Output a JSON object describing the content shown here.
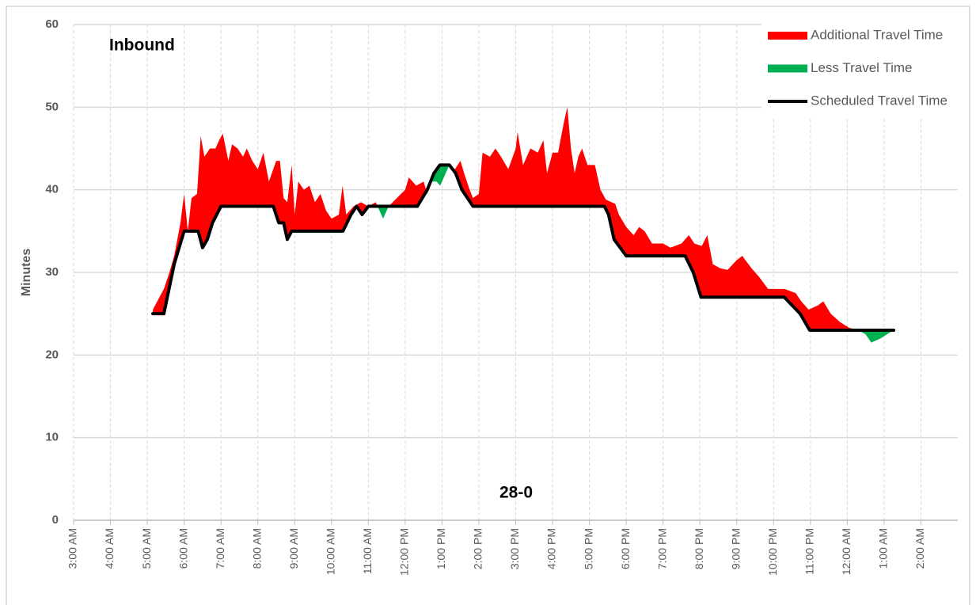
{
  "chart_data": {
    "type": "difference-area",
    "annotations": [
      "Inbound",
      "28-0"
    ],
    "y_label": "Minutes",
    "xlim": [
      3,
      27
    ],
    "ylim": [
      0,
      60
    ],
    "yticks": [
      0,
      10,
      20,
      30,
      40,
      50,
      60
    ],
    "xticks": [
      {
        "value": 3,
        "label": "3:00 AM"
      },
      {
        "value": 4,
        "label": "4:00 AM"
      },
      {
        "value": 5,
        "label": "5:00 AM"
      },
      {
        "value": 6,
        "label": "6:00 AM"
      },
      {
        "value": 7,
        "label": "7:00 AM"
      },
      {
        "value": 8,
        "label": "8:00 AM"
      },
      {
        "value": 9,
        "label": "9:00 AM"
      },
      {
        "value": 10,
        "label": "10:00 AM"
      },
      {
        "value": 11,
        "label": "11:00 AM"
      },
      {
        "value": 12,
        "label": "12:00 PM"
      },
      {
        "value": 13,
        "label": "1:00 PM"
      },
      {
        "value": 14,
        "label": "2:00 PM"
      },
      {
        "value": 15,
        "label": "3:00 PM"
      },
      {
        "value": 16,
        "label": "4:00 PM"
      },
      {
        "value": 17,
        "label": "5:00 PM"
      },
      {
        "value": 18,
        "label": "6:00 PM"
      },
      {
        "value": 19,
        "label": "7:00 PM"
      },
      {
        "value": 20,
        "label": "8:00 PM"
      },
      {
        "value": 21,
        "label": "9:00 PM"
      },
      {
        "value": 22,
        "label": "10:00 PM"
      },
      {
        "value": 23,
        "label": "11:00 PM"
      },
      {
        "value": 24,
        "label": "12:00 AM"
      },
      {
        "value": 25,
        "label": "1:00 AM"
      },
      {
        "value": 26,
        "label": "2:00 AM"
      }
    ],
    "grid": true,
    "legend": "top-right",
    "fills": [
      {
        "name": "Additional Travel Time",
        "color": "#ff0000",
        "where": "above"
      },
      {
        "name": "Less Travel Time",
        "color": "#00b050",
        "where": "below"
      }
    ],
    "series": [
      {
        "role": "observed",
        "x": [
          5.15,
          5.45,
          5.6,
          5.73,
          5.9,
          6.0,
          6.1,
          6.2,
          6.35,
          6.45,
          6.55,
          6.7,
          6.85,
          6.95,
          7.05,
          7.2,
          7.3,
          7.45,
          7.6,
          7.7,
          7.85,
          8.0,
          8.15,
          8.3,
          8.5,
          8.6,
          8.7,
          8.8,
          8.92,
          9.0,
          9.1,
          9.25,
          9.4,
          9.55,
          9.7,
          9.85,
          10.0,
          10.2,
          10.3,
          10.4,
          10.6,
          10.8,
          11.0,
          11.2,
          11.4,
          11.55,
          12.0,
          12.1,
          12.3,
          12.5,
          12.6,
          12.7,
          12.85,
          12.95,
          13.1,
          13.2,
          13.35,
          13.5,
          13.6,
          13.75,
          13.84,
          14.0,
          14.1,
          14.3,
          14.45,
          14.6,
          14.8,
          15.0,
          15.05,
          15.2,
          15.4,
          15.6,
          15.75,
          15.85,
          16.0,
          16.15,
          16.3,
          16.4,
          16.5,
          16.6,
          16.7,
          16.8,
          16.95,
          17.15,
          17.3,
          17.45,
          17.7,
          17.8,
          18.0,
          18.2,
          18.35,
          18.5,
          18.7,
          19.0,
          19.2,
          19.5,
          19.7,
          19.85,
          20.05,
          20.2,
          20.35,
          20.55,
          20.75,
          21.0,
          21.15,
          21.4,
          21.6,
          21.85,
          22.3,
          22.6,
          22.75,
          22.95,
          23.2,
          23.35,
          23.55,
          23.8,
          24.05,
          24.3,
          24.5,
          24.65,
          24.9,
          25.25
        ],
        "values": [
          25.5,
          28,
          30,
          32,
          36,
          39.5,
          35,
          39,
          39.5,
          46.5,
          44,
          45,
          45,
          46,
          46.8,
          43.5,
          45.5,
          45,
          44,
          45,
          43.5,
          42.5,
          44.5,
          41,
          43.5,
          43.5,
          39,
          38.5,
          43,
          37,
          41,
          40,
          40.5,
          38.5,
          39.5,
          37.5,
          36.5,
          37,
          40.5,
          37,
          38,
          38.5,
          38,
          38.5,
          36.5,
          38,
          40,
          41.5,
          40.5,
          41,
          39.5,
          41,
          41,
          40.5,
          42,
          43,
          42.5,
          43.5,
          42,
          40,
          39,
          39.5,
          44.5,
          44,
          45,
          44,
          42.5,
          45,
          47,
          43,
          45,
          44.5,
          46,
          42,
          44.5,
          44.5,
          48,
          50,
          45,
          42,
          44,
          45,
          43,
          43,
          40,
          38.8,
          38.3,
          37,
          35.5,
          34.5,
          35.5,
          35,
          33.5,
          33.5,
          33,
          33.5,
          34.5,
          33.5,
          33.2,
          34.5,
          31,
          30.5,
          30.3,
          31.5,
          32,
          30.5,
          29.5,
          28,
          28,
          27.5,
          26.5,
          25.5,
          26,
          26.5,
          25,
          24,
          23.3,
          23,
          22.5,
          21.5,
          22,
          23
        ]
      },
      {
        "name": "Scheduled Travel Time",
        "color": "#000000",
        "x": [
          5.15,
          5.45,
          5.73,
          6.0,
          6.38,
          6.5,
          6.63,
          6.77,
          7.0,
          8.42,
          8.57,
          8.7,
          8.8,
          8.92,
          10.31,
          10.53,
          10.68,
          10.83,
          11.0,
          12.33,
          12.6,
          12.78,
          12.94,
          13.2,
          13.37,
          13.54,
          13.84,
          17.41,
          17.52,
          17.67,
          18.0,
          19.6,
          19.82,
          20.03,
          22.29,
          22.72,
          22.98,
          25.26
        ],
        "values": [
          25,
          25,
          31,
          35,
          35,
          33,
          34,
          36,
          38,
          38,
          36,
          36,
          34,
          35,
          35,
          37,
          38,
          37,
          38,
          38,
          40,
          42,
          43,
          43,
          42,
          40,
          38,
          38,
          37,
          34,
          32,
          32,
          30,
          27,
          27,
          25,
          23,
          23
        ]
      }
    ]
  }
}
